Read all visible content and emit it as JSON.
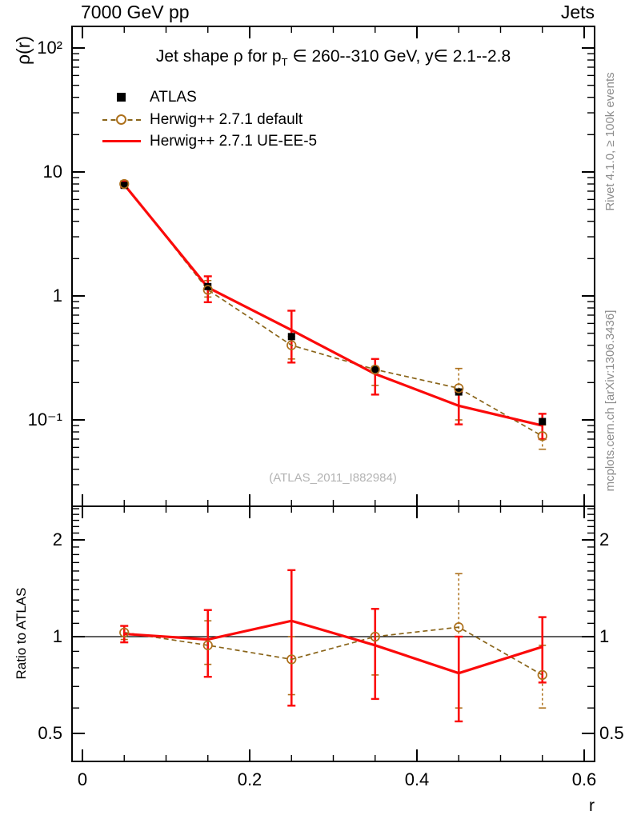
{
  "header": {
    "left_label": "7000 GeV pp",
    "right_label": "Jets"
  },
  "title": {
    "pre": "Jet shape ρ for p",
    "sub": "T",
    "post": " ∈ 260--310 GeV, y∈ 2.1--2.8"
  },
  "watermark": "(ATLAS_2011_I882984)",
  "side_notes": {
    "rivet": "Rivet 4.1.0, ≥ 100k events",
    "mcplots": "mcplots.cern.ch [arXiv:1306.3436]"
  },
  "colors": {
    "frame": "#000000",
    "atlas": "#000000",
    "herwig_default_line": "#8a651a",
    "herwig_default_marker": "#ad701b",
    "herwig_ueee5": "#fb0a0a",
    "watermark_text": "#b3b3b3",
    "side_note_text": "#8c8c8c"
  },
  "chart_data": {
    "type": "line",
    "xlabel": "r",
    "x": [
      0.05,
      0.15,
      0.25,
      0.35,
      0.45,
      0.55
    ],
    "xlim": [
      -0.012,
      0.612
    ],
    "xticks": [
      {
        "v": 0,
        "t": "0"
      },
      {
        "v": 0.2,
        "t": "0.2"
      },
      {
        "v": 0.4,
        "t": "0.4"
      },
      {
        "v": 0.6,
        "t": "0.6"
      }
    ],
    "x_minor_step": 0.05,
    "main_panel": {
      "ylabel": "ρ(r)",
      "yscale": "log",
      "ylim": [
        0.0201,
        148
      ],
      "yticks": [
        {
          "v": 100,
          "t": "10²"
        },
        {
          "v": 10,
          "t": "10"
        },
        {
          "v": 1,
          "t": "1"
        },
        {
          "v": 0.1,
          "t": "10⁻¹"
        }
      ]
    },
    "ratio_panel": {
      "ylabel": "Ratio to ATLAS",
      "yscale": "log",
      "ylim": [
        0.409,
        2.54
      ],
      "reference_line": 1,
      "yticks": [
        {
          "v": 2,
          "t": "2"
        },
        {
          "v": 1,
          "t": "1"
        },
        {
          "v": 0.5,
          "t": "0.5"
        }
      ]
    },
    "series": [
      {
        "name": "ATLAS",
        "legend": "ATLAS",
        "marker": "filled-square",
        "line": "none",
        "color": "#000000",
        "values": [
          7.8,
          1.19,
          0.47,
          0.255,
          0.168,
          0.097
        ],
        "err_lo": [
          7.6,
          1.14,
          0.45,
          0.246,
          0.162,
          0.093
        ],
        "err_hi": [
          8.0,
          1.24,
          0.49,
          0.264,
          0.174,
          0.101
        ]
      },
      {
        "name": "Herwig++ 2.7.1 default",
        "legend": "Herwig++ 2.7.1 default",
        "marker": "open-circle",
        "line": "dashed",
        "color": "#8a651a",
        "marker_color": "#ad701b",
        "values": [
          8.0,
          1.12,
          0.4,
          0.255,
          0.18,
          0.074
        ],
        "err_lo": [
          7.6,
          0.98,
          0.31,
          0.19,
          0.1,
          0.058
        ],
        "err_hi": [
          8.4,
          1.33,
          0.47,
          0.31,
          0.26,
          0.091
        ],
        "ratio": [
          1.03,
          0.94,
          0.85,
          1.0,
          1.07,
          0.76
        ],
        "ratio_lo": [
          0.98,
          0.82,
          0.66,
          0.76,
          0.6,
          0.6
        ],
        "ratio_hi": [
          1.08,
          1.12,
          1.0,
          1.22,
          1.57,
          0.94
        ]
      },
      {
        "name": "Herwig++ 2.7.1 UE-EE-5",
        "legend": "Herwig++ 2.7.1 UE-EE-5",
        "marker": "none",
        "line": "solid",
        "color": "#fb0a0a",
        "values": [
          7.9,
          1.17,
          0.53,
          0.235,
          0.13,
          0.09
        ],
        "err_lo": [
          7.5,
          0.89,
          0.29,
          0.16,
          0.092,
          0.07
        ],
        "err_hi": [
          8.4,
          1.44,
          0.76,
          0.31,
          0.168,
          0.112
        ],
        "ratio": [
          1.02,
          0.98,
          1.12,
          0.94,
          0.77,
          0.93
        ],
        "ratio_lo": [
          0.96,
          0.75,
          0.61,
          0.64,
          0.545,
          0.72
        ],
        "ratio_hi": [
          1.08,
          1.21,
          1.61,
          1.22,
          1.0,
          1.15
        ]
      }
    ]
  }
}
